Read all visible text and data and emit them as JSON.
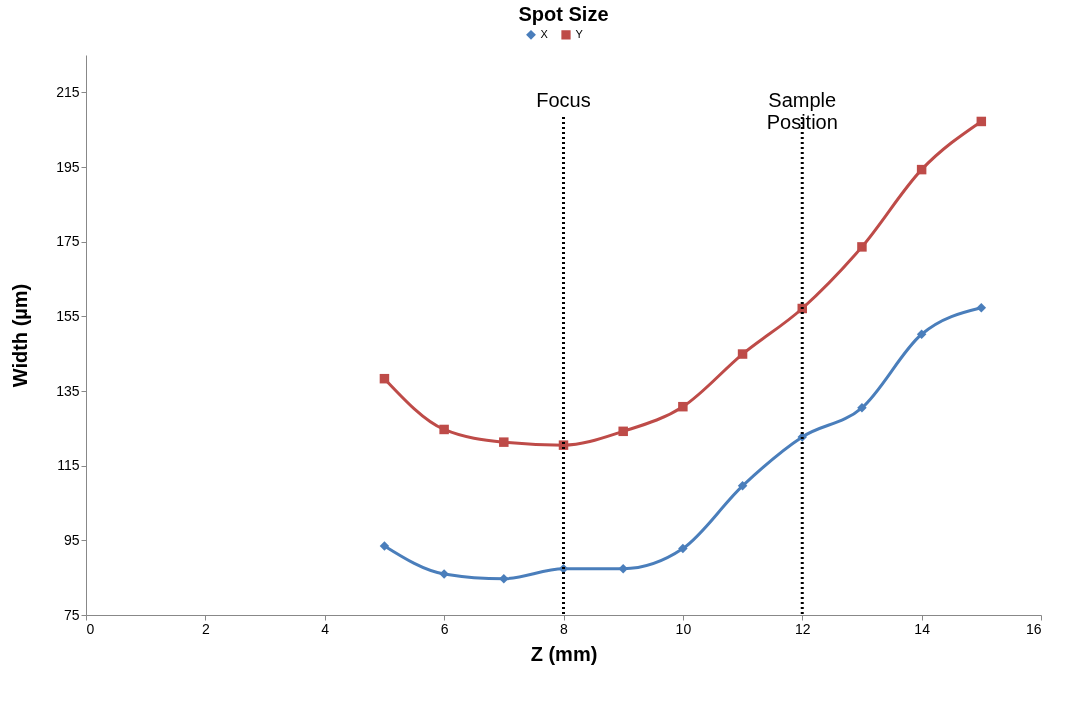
{
  "chart_data": {
    "type": "line",
    "title": "Spot Size",
    "xlabel": "Z (mm)",
    "ylabel": "Width (µm)",
    "x": [
      5,
      6,
      7,
      8,
      9,
      10,
      11,
      12,
      13,
      14,
      15
    ],
    "series": [
      {
        "name": "X",
        "color": "#4a7ebb",
        "marker": "diamond",
        "values": [
          93.5,
          86,
          84.7,
          87.4,
          87.4,
          92.8,
          109.6,
          122.7,
          130.5,
          150.2,
          157.3
        ]
      },
      {
        "name": "Y",
        "color": "#be4b48",
        "marker": "square",
        "values": [
          138.3,
          124.7,
          121.3,
          120.5,
          124.2,
          130.8,
          144.9,
          157.1,
          173.6,
          194.3,
          207.2
        ]
      }
    ],
    "xlim": [
      0,
      16
    ],
    "xticks": [
      0,
      2,
      4,
      6,
      8,
      10,
      12,
      14,
      16
    ],
    "ylim": [
      75,
      225
    ],
    "yticks": [
      75,
      95,
      115,
      135,
      155,
      175,
      195,
      215
    ],
    "ref_lines": [
      {
        "axis": "x",
        "value": 8,
        "label": "Focus",
        "line_style": "dotted",
        "color": "#000000"
      },
      {
        "axis": "x",
        "value": 12,
        "label": "Sample Position",
        "line_style": "dotted",
        "color": "#000000"
      }
    ],
    "grid": false,
    "legend": "top",
    "line_style": "solid"
  }
}
